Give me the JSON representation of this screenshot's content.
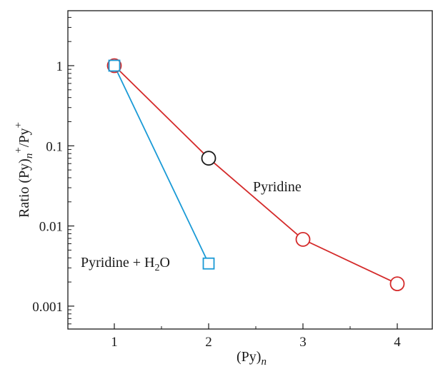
{
  "chart_data": {
    "type": "line",
    "title": "",
    "xlabel": "(Py)",
    "xlabel_sub": "n",
    "ylabel": "Ratio (Py)",
    "ylabel_sub": "n",
    "ylabel_sup": "+",
    "ylabel_tail": "/Py",
    "ylabel_tail_sup": "+",
    "xlim": [
      0.5,
      4.38
    ],
    "ylim": [
      0.0003,
      6
    ],
    "yscale": "log",
    "x_ticks": [
      "1",
      "2",
      "3",
      "4"
    ],
    "x_tick_values": [
      1,
      2,
      3,
      4
    ],
    "y_ticks": [
      "0.001",
      "0.01",
      "0.1",
      "1"
    ],
    "y_tick_values": [
      0.001,
      0.01,
      0.1,
      1
    ],
    "grid": false,
    "series": [
      {
        "name": "Pyridine",
        "color": "#d42a2a",
        "marker": "circle",
        "x": [
          1,
          2,
          3,
          4
        ],
        "y": [
          1,
          0.07,
          0.0068,
          0.0019
        ],
        "highlight_index": 1,
        "highlight_color": "#1a1a1a"
      },
      {
        "name": "Pyridine + H",
        "name_sub": "2",
        "name_tail": "O",
        "color": "#1a9ad6",
        "marker": "square",
        "x": [
          1,
          2
        ],
        "y": [
          1,
          0.0034
        ]
      }
    ]
  }
}
